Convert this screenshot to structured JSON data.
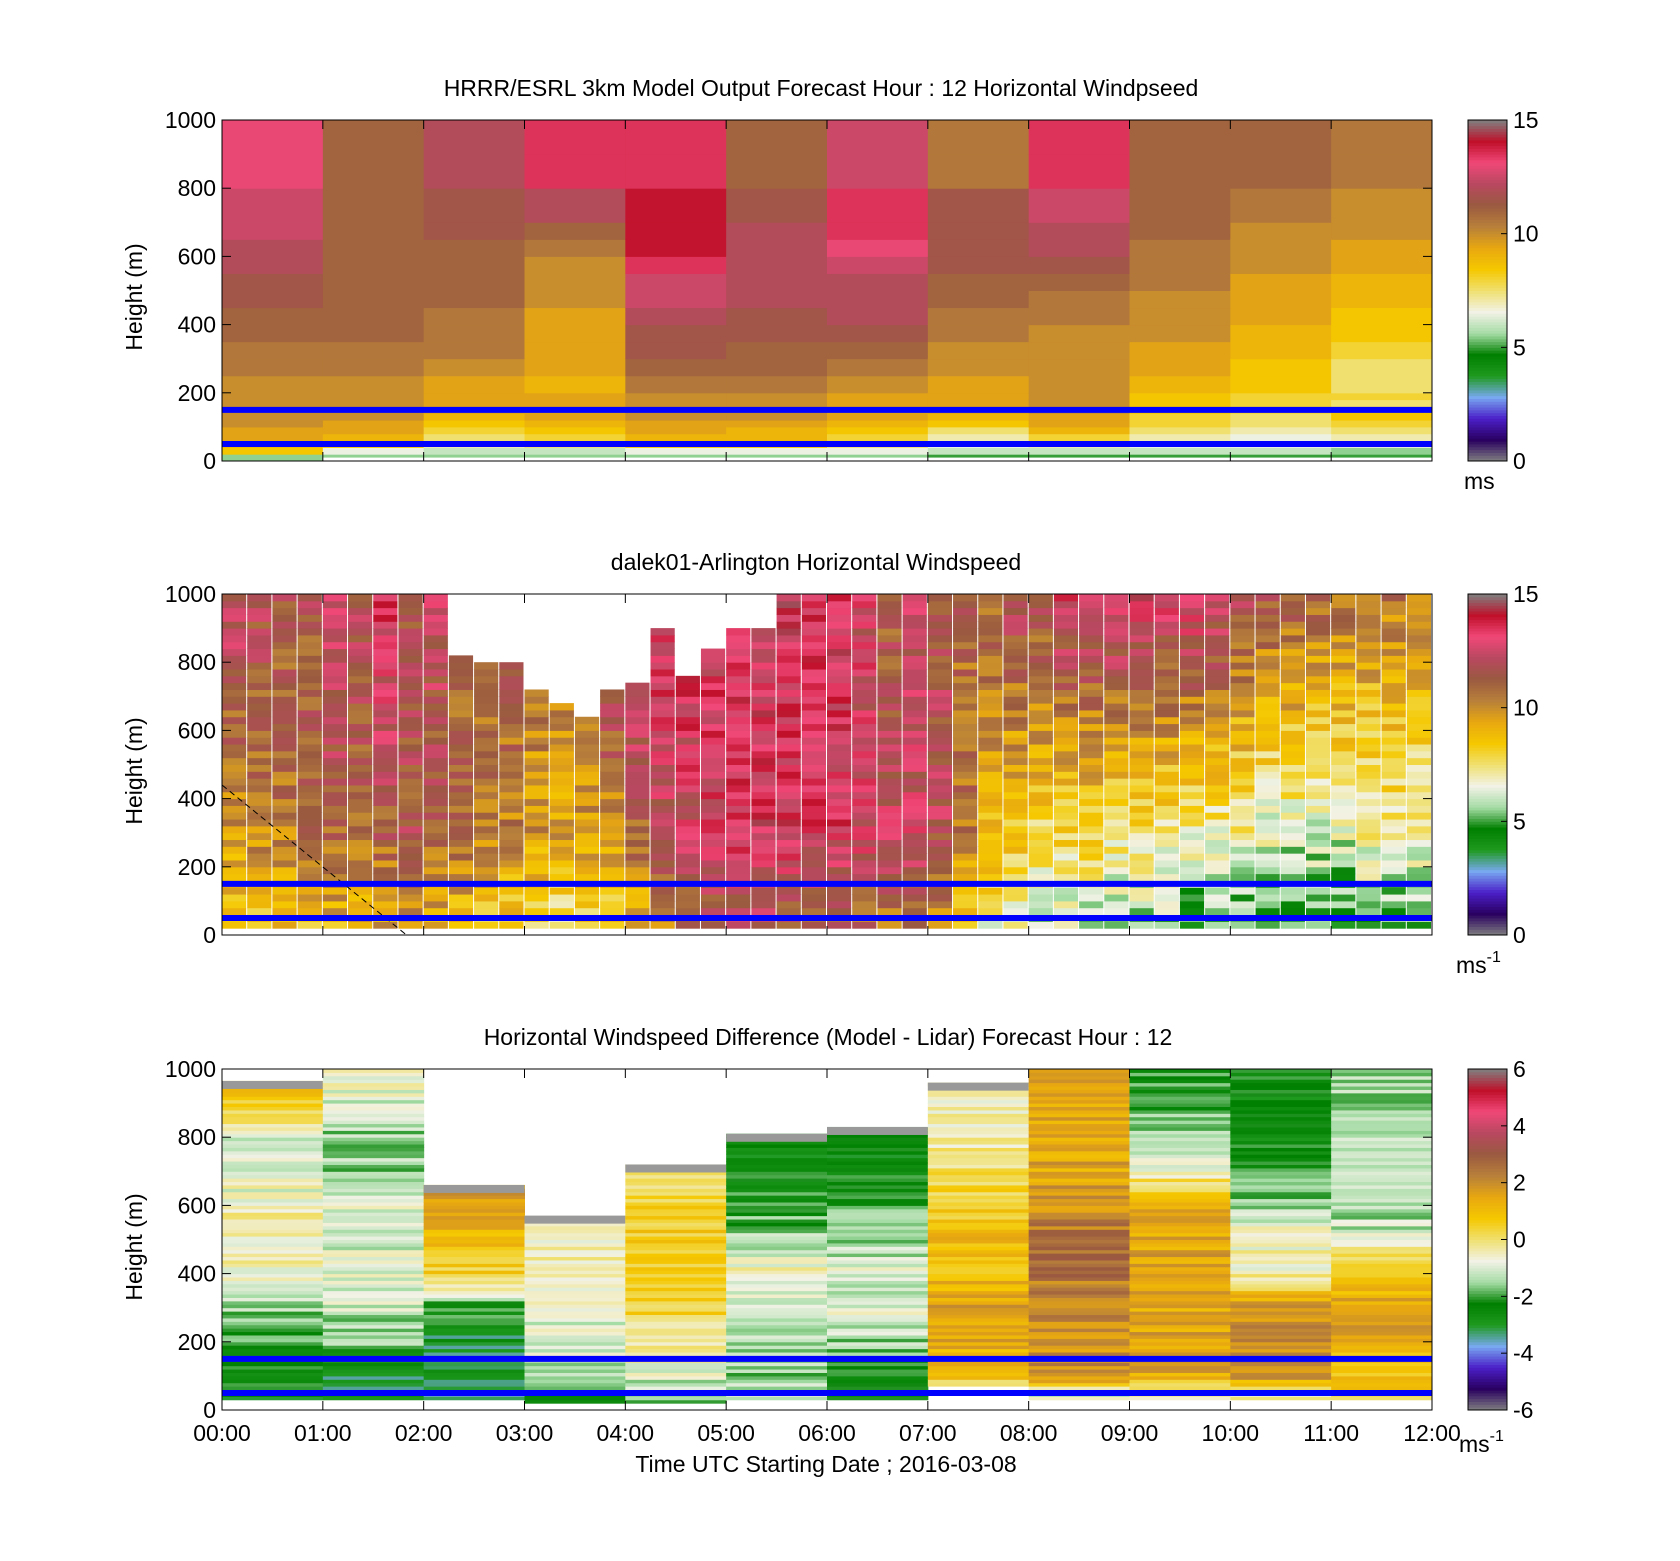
{
  "figure": {
    "xlabel": "Time UTC  Starting Date ; 2016-03-08",
    "time_ticks": [
      "00:00",
      "01:00",
      "02:00",
      "03:00",
      "04:00",
      "05:00",
      "06:00",
      "07:00",
      "08:00",
      "09:00",
      "10:00",
      "11:00",
      "12:00"
    ]
  },
  "colors": {
    "ramp": [
      "#808080",
      "#2a0060",
      "#4b1fc8",
      "#78a8f0",
      "#1f9a1f",
      "#008000",
      "#a6dca6",
      "#f2f2e6",
      "#f0e070",
      "#f5c800",
      "#e8a810",
      "#b8803a",
      "#9a5a40",
      "#b84860",
      "#f04878",
      "#c0102a",
      "#808080"
    ],
    "band_line": "#0000ff",
    "missing": "#ffffff"
  },
  "chart_data": [
    {
      "type": "heatmap",
      "id": "model",
      "title": "HRRR/ESRL 3km Model Output   Forecast Hour : 12 Horizontal Windpseed",
      "ylabel": "Height (m)",
      "ylim": [
        0,
        1000
      ],
      "yticks": [
        "0",
        "200",
        "400",
        "600",
        "800",
        "1000"
      ],
      "xlim_hours": [
        0,
        12
      ],
      "colorbar": {
        "range": [
          0,
          15
        ],
        "ticks": [
          "0",
          "5",
          "10",
          "15"
        ],
        "unit": "ms"
      },
      "reference_heights_m": [
        50,
        150
      ],
      "time_columns_hours": [
        0,
        1,
        2,
        3,
        4,
        5,
        6,
        7,
        8,
        9,
        10,
        11
      ],
      "height_levels_m": [
        20,
        40,
        60,
        80,
        100,
        120,
        140,
        160,
        180,
        200,
        250,
        300,
        350,
        400,
        450,
        500,
        550,
        600,
        650,
        700,
        800,
        900,
        1000
      ],
      "values": [
        [
          5.5,
          5.5,
          5.5,
          5.5,
          5.5,
          5.5,
          5.5,
          5.0,
          5.0,
          5.0,
          5.0,
          5.0
        ],
        [
          8.5,
          6.5,
          6.0,
          6.0,
          6.5,
          6.5,
          6.5,
          6.0,
          6.0,
          6.0,
          6.0,
          5.5
        ],
        [
          9.0,
          8.5,
          7.0,
          7.5,
          8.5,
          8.5,
          7.5,
          6.5,
          7.0,
          6.5,
          6.5,
          6.5
        ],
        [
          9.5,
          9.0,
          7.5,
          8.0,
          9.0,
          9.0,
          8.0,
          7.0,
          8.0,
          7.0,
          6.5,
          7.0
        ],
        [
          9.5,
          9.5,
          8.0,
          8.5,
          9.5,
          9.0,
          8.5,
          7.5,
          9.0,
          7.5,
          7.0,
          7.5
        ],
        [
          10.0,
          9.5,
          8.5,
          9.0,
          9.5,
          9.5,
          9.0,
          8.5,
          9.5,
          8.0,
          7.5,
          8.0
        ],
        [
          10.0,
          10.0,
          9.0,
          9.5,
          10.0,
          10.0,
          9.5,
          9.0,
          9.5,
          8.0,
          7.5,
          8.5
        ],
        [
          10.0,
          10.0,
          9.5,
          9.5,
          10.0,
          10.0,
          9.5,
          9.5,
          10.0,
          8.5,
          8.0,
          8.5
        ],
        [
          10.0,
          10.0,
          9.5,
          9.5,
          10.0,
          10.0,
          9.5,
          9.5,
          10.0,
          8.5,
          8.0,
          7.5
        ],
        [
          10.0,
          10.0,
          9.5,
          9.5,
          10.0,
          10.0,
          9.5,
          9.5,
          10.0,
          8.5,
          8.0,
          8.0
        ],
        [
          10.0,
          10.0,
          9.5,
          9.0,
          10.5,
          10.5,
          10.0,
          9.5,
          10.0,
          9.0,
          8.5,
          7.5
        ],
        [
          10.5,
          10.5,
          10.0,
          9.5,
          11.0,
          11.0,
          10.5,
          10.0,
          10.0,
          9.5,
          8.5,
          7.5
        ],
        [
          10.5,
          10.5,
          10.5,
          9.5,
          11.5,
          11.0,
          11.0,
          10.0,
          10.0,
          9.5,
          9.0,
          8.0
        ],
        [
          11.0,
          11.0,
          10.5,
          9.5,
          11.5,
          11.5,
          11.5,
          10.5,
          10.0,
          10.0,
          9.0,
          8.5
        ],
        [
          11.0,
          11.0,
          10.5,
          9.5,
          12.0,
          11.5,
          12.0,
          10.5,
          10.5,
          10.0,
          9.5,
          8.5
        ],
        [
          11.5,
          11.0,
          11.0,
          10.0,
          12.5,
          12.0,
          12.0,
          11.0,
          10.5,
          10.0,
          9.5,
          9.0
        ],
        [
          11.5,
          11.0,
          11.0,
          10.0,
          12.5,
          12.0,
          12.0,
          11.0,
          11.0,
          10.5,
          9.5,
          9.0
        ],
        [
          12.0,
          11.0,
          11.0,
          10.0,
          13.5,
          12.0,
          12.5,
          11.5,
          11.5,
          10.5,
          10.0,
          9.5
        ],
        [
          12.0,
          11.0,
          11.0,
          10.5,
          14.0,
          12.0,
          13.0,
          11.5,
          12.0,
          10.5,
          10.0,
          9.5
        ],
        [
          12.5,
          11.0,
          11.5,
          11.0,
          14.0,
          12.0,
          13.5,
          11.5,
          12.0,
          11.0,
          10.0,
          10.0
        ],
        [
          12.5,
          11.0,
          11.5,
          12.0,
          14.0,
          11.5,
          13.5,
          11.5,
          12.5,
          11.0,
          10.5,
          10.0
        ],
        [
          13.0,
          11.0,
          12.0,
          13.5,
          13.5,
          11.0,
          12.5,
          10.5,
          13.5,
          11.0,
          11.0,
          10.5
        ],
        [
          13.0,
          11.0,
          12.0,
          13.5,
          13.5,
          11.0,
          12.5,
          10.5,
          13.5,
          11.0,
          11.0,
          10.5
        ]
      ]
    },
    {
      "type": "heatmap",
      "id": "lidar",
      "title": "dalek01-Arlington  Horizontal Windspeed",
      "ylabel": "Height (m)",
      "ylim": [
        0,
        1000
      ],
      "yticks": [
        "0",
        "200",
        "400",
        "600",
        "800",
        "1000"
      ],
      "xlim_hours": [
        0,
        12
      ],
      "colorbar": {
        "range": [
          0,
          15
        ],
        "ticks": [
          "0",
          "5",
          "10",
          "15"
        ],
        "unit": "ms",
        "unit_sup": "-1"
      },
      "reference_heights_m": [
        50,
        150
      ],
      "annotation": "dashed line from (00:00, 440 m) to (01:50, 0 m)",
      "profile_interval_minutes": 15,
      "top_of_data_m": [
        1000,
        1000,
        1000,
        1000,
        1000,
        1000,
        1000,
        1000,
        1000,
        810,
        790,
        790,
        720,
        670,
        640,
        720,
        740,
        890,
        760,
        840,
        900,
        890,
        1000,
        1000,
        1000,
        1000,
        1000,
        1000,
        1000,
        1000,
        1000,
        1000,
        1000,
        1000,
        1000,
        1000,
        1000,
        1000,
        1000,
        1000,
        1000,
        1000,
        1000,
        1000,
        1000,
        1000,
        1000,
        1000
      ],
      "low_wind_10m_s_by_column": [
        9.5,
        9.8,
        10.0,
        10.3,
        10.5,
        10.5,
        10.8,
        11.0,
        10.5,
        10.3,
        10.0,
        9.8,
        9.3,
        9.0,
        9.3,
        9.5,
        10.5,
        11.5,
        12.0,
        12.5,
        13.0,
        13.0,
        12.8,
        12.5,
        12.5,
        12.3,
        12.0,
        12.0,
        11.5,
        10.0,
        8.5,
        8.0,
        7.5,
        7.5,
        7.5,
        7.0,
        7.0,
        7.0,
        6.5,
        6.5,
        6.5,
        6.0,
        6.0,
        6.0,
        6.0,
        6.5,
        6.5,
        6.5
      ],
      "upper_wind_10m_s_by_column": [
        12.5,
        12.0,
        11.5,
        11.5,
        13.0,
        12.0,
        13.5,
        11.5,
        12.5,
        11.5,
        11.0,
        11.5,
        10.5,
        10.5,
        11.0,
        13.0,
        13.5,
        13.5,
        13.5,
        13.0,
        13.5,
        13.0,
        13.5,
        13.5,
        13.5,
        12.5,
        11.0,
        12.0,
        11.5,
        11.0,
        11.0,
        12.0,
        12.0,
        13.0,
        13.0,
        13.5,
        13.5,
        13.0,
        13.5,
        13.0,
        12.0,
        11.5,
        11.5,
        11.0,
        11.0,
        10.5,
        10.5,
        10.0
      ]
    },
    {
      "type": "heatmap",
      "id": "difference",
      "title": "Horizontal Windspeed Difference (Model - Lidar) Forecast Hour : 12",
      "ylabel": "Height (m)",
      "ylim": [
        0,
        1000
      ],
      "yticks": [
        "0",
        "200",
        "400",
        "600",
        "800",
        "1000"
      ],
      "xlim_hours": [
        0,
        12
      ],
      "colorbar": {
        "range": [
          -6,
          6
        ],
        "ticks": [
          "-6",
          "-4",
          "-2",
          "0",
          "2",
          "4",
          "6"
        ],
        "unit": "ms",
        "unit_sup": "-1"
      },
      "reference_heights_m": [
        50,
        150
      ],
      "time_columns_hours": [
        0,
        1,
        2,
        3,
        4,
        5,
        6,
        7,
        8,
        9,
        10,
        11
      ],
      "top_of_data_m": [
        965,
        1000,
        660,
        570,
        720,
        810,
        830,
        960,
        1000,
        1000,
        1000,
        1000
      ],
      "bottom_of_data_m": [
        30,
        30,
        30,
        20,
        20,
        30,
        30,
        70,
        30,
        30,
        30,
        30
      ],
      "height_levels_m": [
        50,
        100,
        150,
        200,
        250,
        300,
        400,
        500,
        600,
        700,
        800,
        900,
        1000
      ],
      "values": [
        [
          -2.5,
          -3.0,
          -3.5,
          -2.0,
          -1.5,
          -1.5,
          -2.0,
          -1.5,
          -1.0,
          -0.5,
          0.0,
          0.5
        ],
        [
          -2.5,
          -3.0,
          -3.0,
          -1.5,
          -1.0,
          -1.5,
          -2.0,
          1.0,
          2.0,
          1.5,
          2.0,
          1.0
        ],
        [
          -2.5,
          -3.0,
          -3.0,
          -1.0,
          -0.5,
          -1.5,
          -2.0,
          1.0,
          2.0,
          1.5,
          2.0,
          1.0
        ],
        [
          -2.0,
          -1.5,
          -3.0,
          -1.0,
          -0.5,
          -1.5,
          -1.5,
          1.5,
          2.0,
          1.5,
          2.0,
          1.5
        ],
        [
          -1.5,
          -1.5,
          -2.5,
          -1.0,
          0.0,
          -1.0,
          -1.0,
          1.5,
          2.0,
          1.5,
          2.0,
          1.5
        ],
        [
          -1.5,
          -1.0,
          -2.0,
          -1.0,
          0.5,
          -1.0,
          -1.0,
          1.5,
          2.0,
          1.5,
          2.0,
          1.5
        ],
        [
          -0.5,
          -1.0,
          0.5,
          -0.5,
          0.5,
          -0.5,
          -1.0,
          1.0,
          2.5,
          1.5,
          -0.5,
          1.0
        ],
        [
          -0.5,
          -1.0,
          1.0,
          -0.5,
          0.5,
          -1.5,
          -1.5,
          1.0,
          2.5,
          1.5,
          -0.5,
          -1.0
        ],
        [
          -0.5,
          -1.0,
          1.5,
          -0.5,
          0.5,
          -2.0,
          -2.0,
          0.5,
          2.0,
          1.5,
          -1.5,
          -1.5
        ],
        [
          -1.0,
          -1.5,
          1.5,
          -0.5,
          0.0,
          -2.5,
          -2.5,
          0.0,
          1.5,
          -0.5,
          -2.0,
          -1.5
        ],
        [
          -1.0,
          -1.5,
          1.5,
          -0.5,
          0.0,
          -2.5,
          -2.5,
          -0.5,
          1.5,
          -1.5,
          -2.5,
          -1.5
        ],
        [
          0.5,
          -1.0,
          1.5,
          0.0,
          0.0,
          -2.0,
          -2.0,
          -0.5,
          1.5,
          -2.0,
          -2.5,
          -1.5
        ],
        [
          1.5,
          -0.5,
          1.5,
          0.0,
          0.0,
          -2.0,
          -2.0,
          -0.5,
          1.5,
          -2.0,
          -2.5,
          -1.5
        ]
      ]
    }
  ]
}
